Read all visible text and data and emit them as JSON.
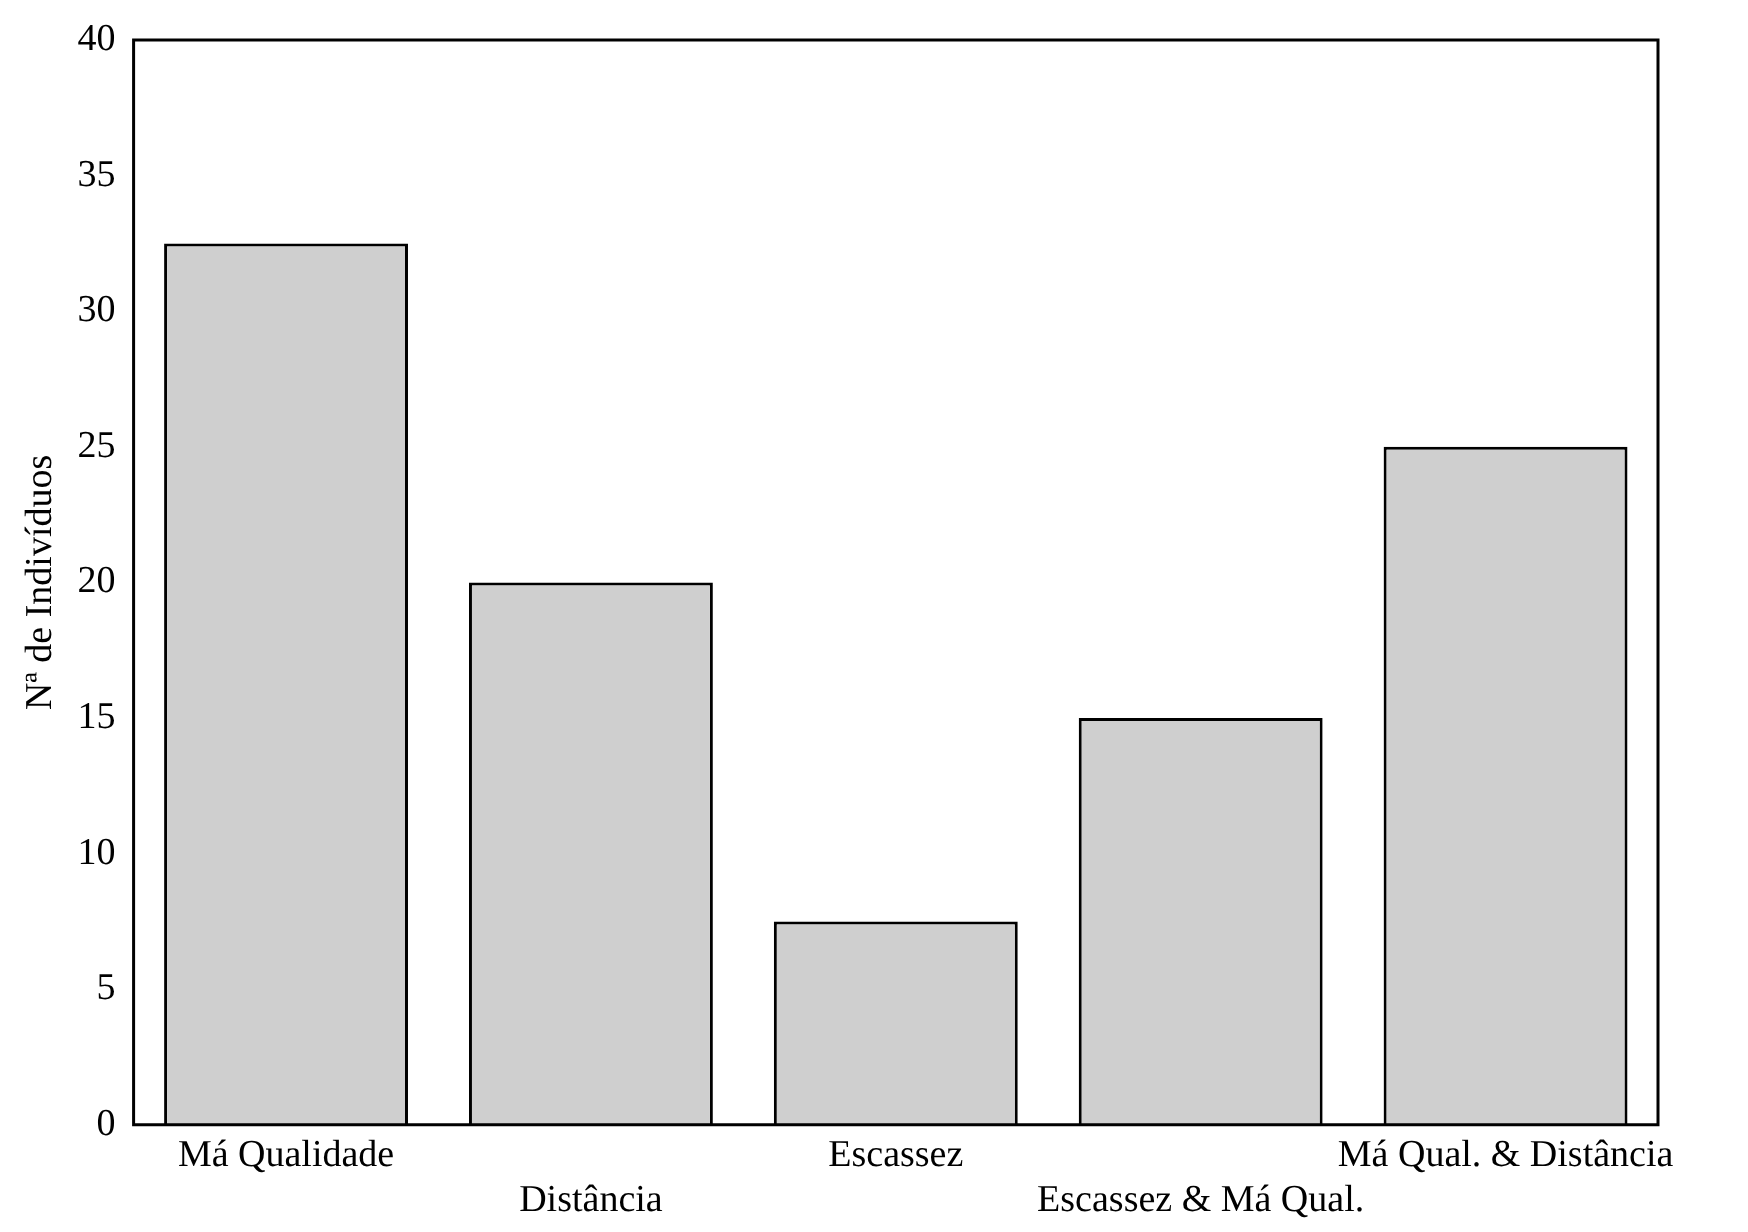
{
  "chart_data": {
    "type": "bar",
    "ylabel": "Nª de Indivíduos",
    "categories": [
      "Má Qualidade",
      "Distância",
      "Escassez",
      "Escassez & Má Qual.",
      "Má Qual. & Distância"
    ],
    "values": [
      32.5,
      20,
      7.5,
      15,
      25
    ],
    "color": "#cfcfcf",
    "ylim": [
      0,
      40
    ],
    "yticks": [
      0,
      5,
      10,
      15,
      20,
      25,
      30,
      35,
      40
    ],
    "grid": false,
    "legend": false
  }
}
